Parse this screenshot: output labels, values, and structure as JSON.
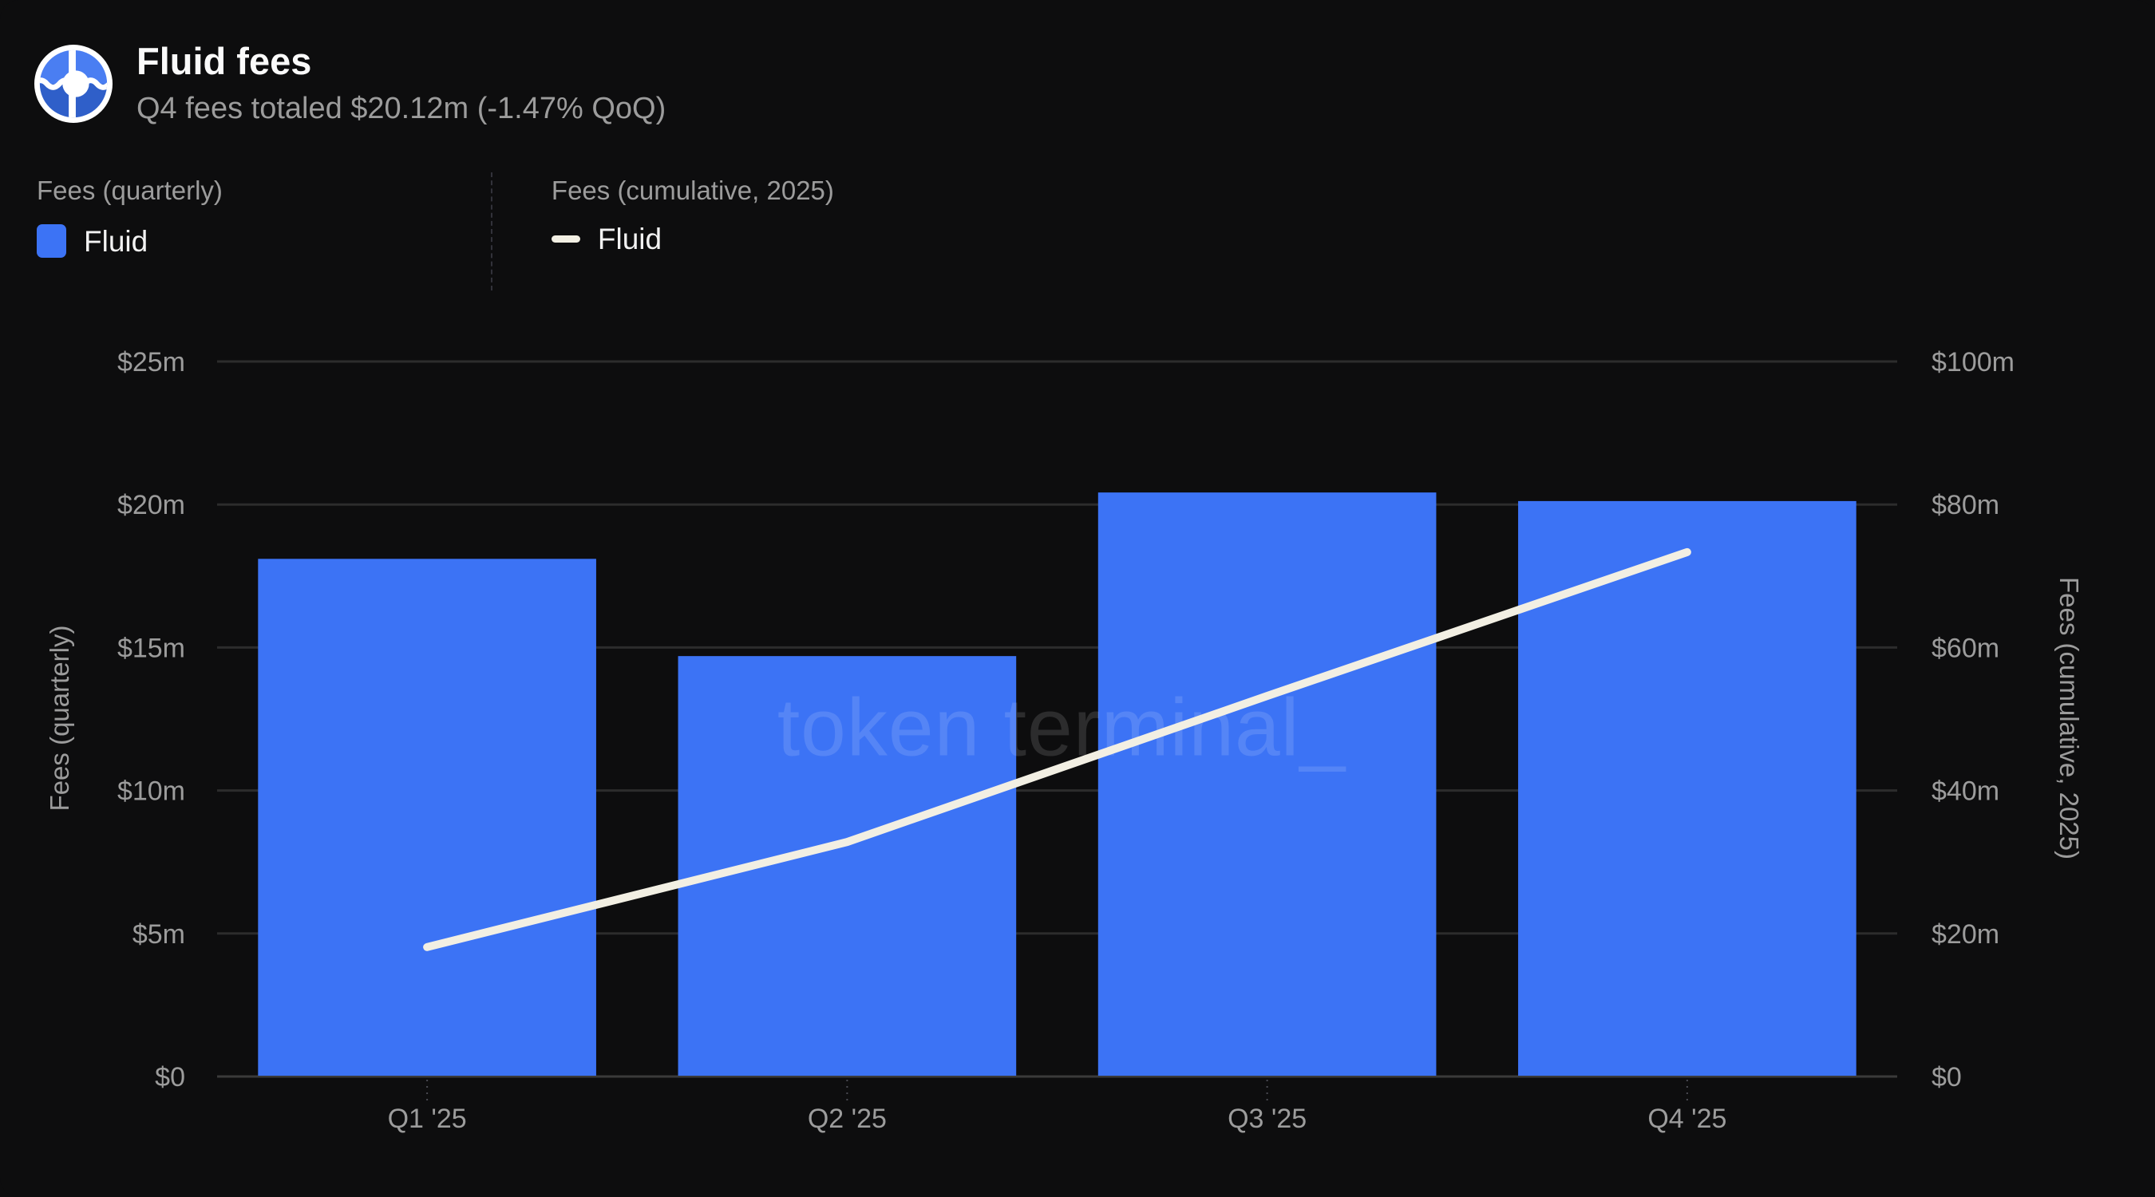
{
  "header": {
    "title": "Fluid fees",
    "subtitle": "Q4 fees totaled $20.12m (-1.47% QoQ)",
    "logo": "fluid-logo"
  },
  "legend": {
    "groups": [
      {
        "heading": "Fees (quarterly)",
        "item": "Fluid",
        "swatch": "bar-swatch",
        "color": "#3C73F5"
      },
      {
        "heading": "Fees (cumulative, 2025)",
        "item": "Fluid",
        "swatch": "line-swatch",
        "color": "#F2EFE3"
      }
    ]
  },
  "chart_data": {
    "type": "bar",
    "categories": [
      "Q1 '25",
      "Q2 '25",
      "Q3 '25",
      "Q4 '25"
    ],
    "series": [
      {
        "name": "Fluid",
        "kind": "bar",
        "axis": "left",
        "color": "#3C73F5",
        "values": [
          18.1,
          14.7,
          20.42,
          20.12
        ]
      },
      {
        "name": "Fluid",
        "kind": "line",
        "axis": "right",
        "color": "#F2EFE3",
        "values": [
          18.1,
          32.8,
          53.22,
          73.34
        ]
      }
    ],
    "left_axis": {
      "label": "Fees (quarterly)",
      "min": 0,
      "max": 25,
      "ticks": [
        "$0",
        "$5m",
        "$10m",
        "$15m",
        "$20m",
        "$25m"
      ]
    },
    "right_axis": {
      "label": "Fees (cumulative, 2025)",
      "min": 0,
      "max": 100,
      "ticks": [
        "$0",
        "$20m",
        "$40m",
        "$60m",
        "$80m",
        "$100m"
      ]
    },
    "grid": "horizontal",
    "legend_position": "top-left",
    "watermark": "token terminal_",
    "colors": {
      "background": "#0d0d0e",
      "gridline": "#2c2c2c",
      "baseline": "#3a3a3a",
      "tick_text": "#9c9c9c",
      "bar": "#3C73F5",
      "line": "#F2EFE3"
    }
  }
}
